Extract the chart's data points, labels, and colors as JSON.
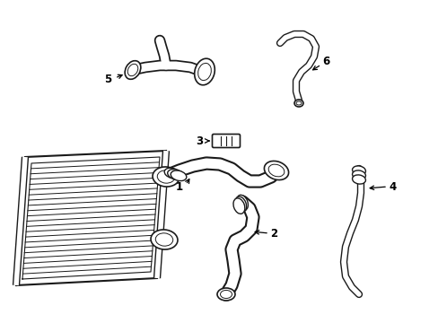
{
  "background_color": "#ffffff",
  "line_color": "#1a1a1a",
  "fig_width": 4.89,
  "fig_height": 3.6,
  "dpi": 100,
  "xlim": [
    0,
    489
  ],
  "ylim": [
    0,
    360
  ]
}
